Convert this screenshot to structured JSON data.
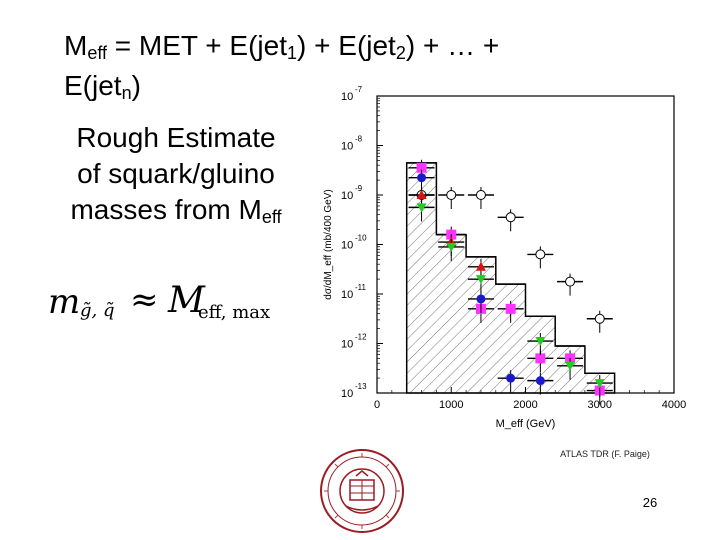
{
  "slide": {
    "title_parts": {
      "m": "M",
      "m_sub": "eff",
      "eq": " = MET + E(jet",
      "s1": "1",
      "p1": ") + E(jet",
      "s2": "2",
      "p2": ") + … +",
      "line2a": "E(jet",
      "sn": "n",
      "line2b": ")"
    },
    "rough_estimate": {
      "line1": "Rough Estimate",
      "line2": "of squark/gluino",
      "line3a": "masses from M",
      "line3_sub": "eff"
    },
    "formula": {
      "lhs": "m",
      "lhs_sub": "g̃, q̃",
      "approx": "≈",
      "rhs": "M",
      "rhs_sub": "eff, max"
    },
    "credit": "ATLAS TDR (F. Paige)",
    "page_number": "26"
  },
  "colors": {
    "magenta": "#ff33ff",
    "blue": "#1a1acc",
    "red": "#dd1111",
    "green": "#22cc22",
    "seal": "#9b1c24"
  },
  "chart_data": {
    "type": "histogram",
    "xlabel": "M_eff (GeV)",
    "ylabel": "dσ/dM_eff (mb/400 GeV)",
    "xlim": [
      0,
      4000
    ],
    "ylim_log10": [
      -13,
      -7
    ],
    "x_ticks": [
      "0",
      "1000",
      "2000",
      "3000",
      "4000"
    ],
    "y_tick_bases": [
      "10",
      "10",
      "10",
      "10",
      "10",
      "10",
      "10"
    ],
    "y_tick_exps": [
      "-13",
      "-12",
      "-11",
      "-10",
      "-9",
      "-8",
      "-7"
    ],
    "background_histogram": {
      "bin_edges": [
        400,
        800,
        1200,
        1600,
        2000,
        2400,
        2800,
        3200
      ],
      "log10_values": [
        -8.35,
        -9.8,
        -10.25,
        -10.8,
        -11.45,
        -12.05,
        -12.6
      ]
    },
    "series": [
      {
        "marker": "open-circle",
        "color": "#ffffff",
        "x": [
          600,
          1000,
          1400,
          1800,
          2200,
          2600,
          3000
        ],
        "log10_y": [
          -9.0,
          -9.0,
          -9.0,
          -9.45,
          -10.2,
          -10.75,
          -11.5
        ]
      },
      {
        "marker": "square",
        "color": "#ff33ff",
        "x": [
          600,
          1000,
          1400,
          1800,
          2200,
          2600,
          3000
        ],
        "log10_y": [
          -8.45,
          -9.8,
          -11.3,
          -11.3,
          -12.3,
          -12.3,
          -12.95
        ]
      },
      {
        "marker": "circle",
        "color": "#1a1acc",
        "x": [
          600,
          1400,
          1800,
          2200
        ],
        "log10_y": [
          -8.65,
          -11.1,
          -12.7,
          -12.75
        ]
      },
      {
        "marker": "triangle-up",
        "color": "#dd1111",
        "x": [
          600,
          1000,
          1400
        ],
        "log10_y": [
          -9.0,
          -9.95,
          -10.45
        ]
      },
      {
        "marker": "triangle-down",
        "color": "#22cc22",
        "x": [
          600,
          1000,
          1400,
          2200,
          2600,
          3000
        ],
        "log10_y": [
          -9.25,
          -10.05,
          -10.7,
          -11.95,
          -12.45,
          -12.8
        ]
      }
    ]
  }
}
